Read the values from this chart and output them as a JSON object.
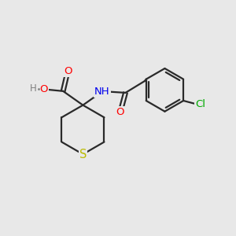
{
  "bg_color": "#e8e8e8",
  "bond_color": "#2a2a2a",
  "line_width": 1.6,
  "atom_colors": {
    "O": "#ff0000",
    "N": "#0000ee",
    "S": "#bbbb00",
    "Cl": "#00aa00",
    "H": "#808080",
    "C": "#2a2a2a"
  },
  "font_size": 9.5,
  "fig_bg": "#e8e8e8"
}
